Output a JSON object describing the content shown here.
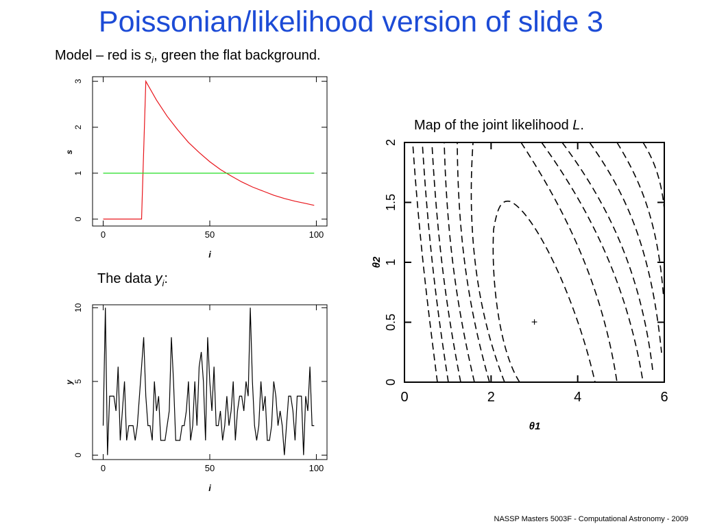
{
  "slide": {
    "title": "Poissonian/likelihood version of slide 3",
    "model_caption": {
      "before": "Model – red is ",
      "var": "s",
      "sub": "i",
      "after": ", green the flat background."
    },
    "data_caption": {
      "before": "The data ",
      "var": "y",
      "sub": "i",
      "after": ":"
    },
    "map_caption": {
      "before": "Map of the joint likelihood ",
      "var": "L",
      "after": "."
    },
    "footer": "NASSP Masters 5003F - Computational Astronomy - 2009"
  },
  "chart_data": [
    {
      "type": "line",
      "xlabel": "i",
      "ylabel": "s",
      "xlim": [
        -5,
        105
      ],
      "ylim": [
        -0.15,
        3.1
      ],
      "xticks": [
        0,
        50,
        100
      ],
      "yticks": [
        0,
        1,
        2,
        3
      ],
      "series": [
        {
          "color": "#e8141a",
          "x": [
            0,
            10,
            18,
            19,
            20,
            25,
            30,
            35,
            40,
            45,
            50,
            55,
            60,
            65,
            70,
            75,
            80,
            85,
            90,
            95,
            99
          ],
          "y": [
            0,
            0,
            0,
            1.5,
            3.0,
            2.59,
            2.24,
            1.94,
            1.67,
            1.45,
            1.25,
            1.08,
            0.94,
            0.81,
            0.7,
            0.61,
            0.52,
            0.45,
            0.39,
            0.34,
            0.3
          ]
        },
        {
          "color": "#22dd22",
          "x": [
            0,
            99
          ],
          "y": [
            1,
            1
          ]
        }
      ]
    },
    {
      "type": "line",
      "xlabel": "i",
      "ylabel": "y",
      "xlim": [
        -5,
        105
      ],
      "ylim": [
        -0.3,
        10.2
      ],
      "xticks": [
        0,
        50,
        100
      ],
      "yticks": [
        0,
        5,
        10
      ],
      "series": [
        {
          "color": "#000000",
          "x": [
            0,
            1,
            2,
            3,
            4,
            5,
            6,
            7,
            8,
            9,
            10,
            11,
            12,
            13,
            14,
            15,
            16,
            17,
            18,
            19,
            20,
            21,
            22,
            23,
            24,
            25,
            26,
            27,
            28,
            29,
            30,
            31,
            32,
            33,
            34,
            35,
            36,
            37,
            38,
            39,
            40,
            41,
            42,
            43,
            44,
            45,
            46,
            47,
            48,
            49,
            50,
            51,
            52,
            53,
            54,
            55,
            56,
            57,
            58,
            59,
            60,
            61,
            62,
            63,
            64,
            65,
            66,
            67,
            68,
            69,
            70,
            71,
            72,
            73,
            74,
            75,
            76,
            77,
            78,
            79,
            80,
            81,
            82,
            83,
            84,
            85,
            86,
            87,
            88,
            89,
            90,
            91,
            92,
            93,
            94,
            95,
            96,
            97,
            98,
            99
          ],
          "y": [
            2,
            10,
            0,
            4,
            4,
            4,
            3,
            6,
            1,
            3,
            5,
            1,
            2,
            2,
            2,
            1,
            2,
            4,
            6,
            8,
            4,
            2,
            2,
            1,
            5,
            3,
            4,
            1,
            1,
            1,
            2,
            3,
            8,
            5,
            1,
            1,
            1,
            2,
            2,
            3,
            5,
            1,
            2,
            5,
            2,
            6,
            7,
            5,
            1,
            8,
            5,
            3,
            6,
            2,
            2,
            3,
            1,
            2,
            4,
            2,
            3,
            5,
            1,
            3,
            4,
            4,
            3,
            5,
            4,
            10,
            5,
            2,
            1,
            2,
            5,
            3,
            4,
            1,
            1,
            2,
            5,
            4,
            2,
            3,
            2,
            0,
            2,
            4,
            4,
            3,
            1,
            4,
            4,
            4,
            0,
            4,
            3,
            6,
            2,
            2
          ]
        }
      ]
    },
    {
      "type": "contour",
      "xlabel": "θ1",
      "ylabel": "θ2",
      "xlim": [
        0,
        6
      ],
      "ylim": [
        0,
        2
      ],
      "xticks": [
        "0",
        "2",
        "4",
        "6"
      ],
      "yticks": [
        "0",
        "0.5",
        "1",
        "1.5",
        "2"
      ],
      "marker": {
        "symbol": "+",
        "x": 3.0,
        "y": 0.5
      }
    }
  ]
}
